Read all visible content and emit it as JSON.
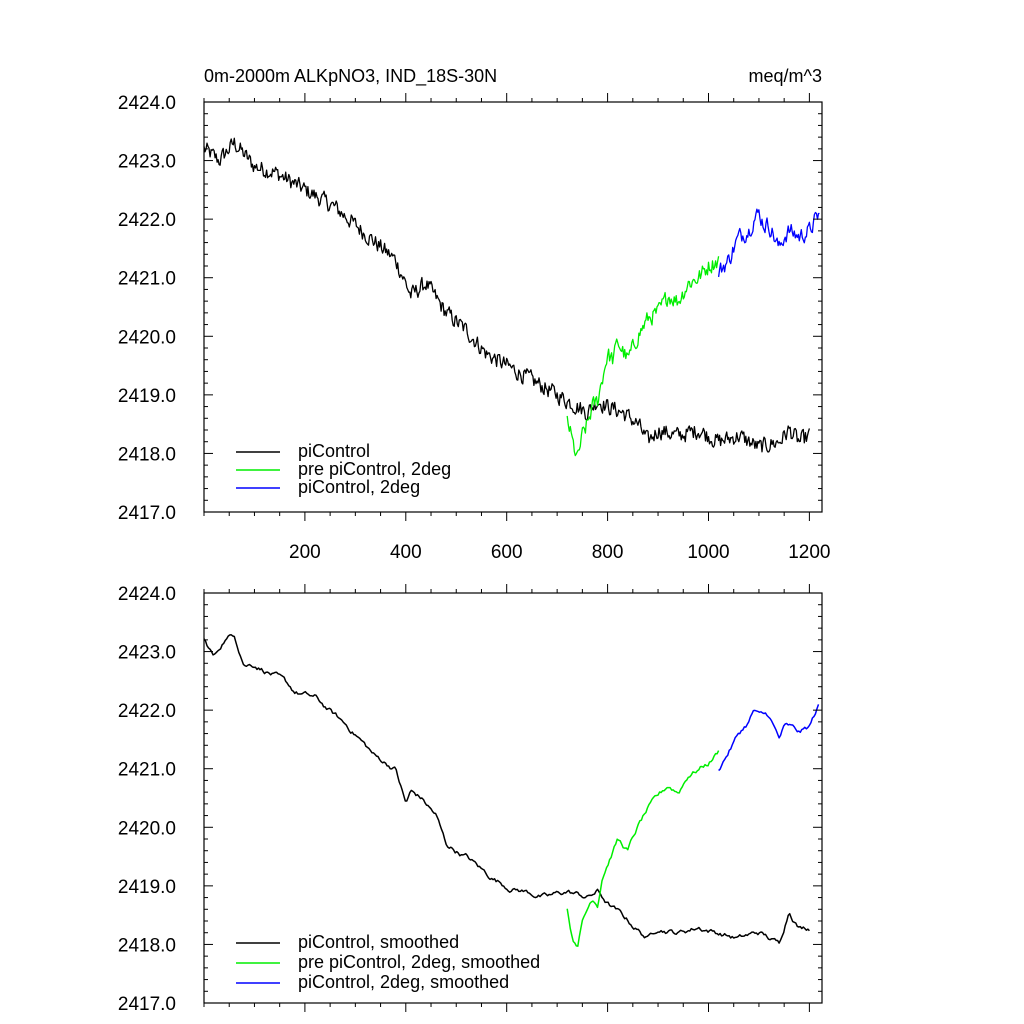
{
  "chart_data": [
    {
      "type": "line",
      "title": "0m-2000m ALKpNO3, IND_18S-30N",
      "units": "meq/m^3",
      "xlim": [
        0,
        1225
      ],
      "ylim": [
        2417.0,
        2424.0
      ],
      "x_ticks": [
        200,
        400,
        600,
        800,
        1000,
        1200
      ],
      "x_tick_labels": [
        "200",
        "400",
        "600",
        "800",
        "1000",
        "1200"
      ],
      "y_ticks": [
        2417,
        2418,
        2419,
        2420,
        2421,
        2422,
        2423,
        2424
      ],
      "y_tick_labels": [
        "2417.0",
        "2418.0",
        "2419.0",
        "2420.0",
        "2421.0",
        "2422.0",
        "2423.0",
        "2424.0"
      ],
      "legend_position": "bottom-left",
      "series": [
        {
          "name": "piControl",
          "color": "#000000",
          "x": [
            0,
            30,
            60,
            100,
            140,
            180,
            220,
            260,
            300,
            340,
            380,
            410,
            440,
            480,
            520,
            560,
            600,
            640,
            680,
            720,
            740,
            760,
            780,
            800,
            830,
            860,
            880,
            900,
            940,
            980,
            1020,
            1060,
            1100,
            1140,
            1160,
            1180,
            1200
          ],
          "y": [
            2423.2,
            2423.0,
            2423.3,
            2422.9,
            2422.8,
            2422.6,
            2422.4,
            2422.2,
            2421.9,
            2421.6,
            2421.3,
            2420.7,
            2420.9,
            2420.4,
            2420.1,
            2419.7,
            2419.5,
            2419.3,
            2419.1,
            2418.9,
            2418.8,
            2418.7,
            2418.9,
            2418.8,
            2418.7,
            2418.5,
            2418.2,
            2418.4,
            2418.3,
            2418.4,
            2418.2,
            2418.3,
            2418.1,
            2418.2,
            2418.4,
            2418.2,
            2418.3
          ]
        },
        {
          "name": "pre piControl, 2deg",
          "color": "#00ee00",
          "x": [
            720,
            730,
            740,
            750,
            760,
            770,
            780,
            790,
            800,
            810,
            820,
            840,
            860,
            880,
            900,
            920,
            940,
            960,
            980,
            1000,
            1020
          ],
          "y": [
            2418.6,
            2418.2,
            2417.9,
            2418.3,
            2418.5,
            2418.8,
            2418.9,
            2419.3,
            2419.7,
            2419.6,
            2419.9,
            2419.6,
            2420.0,
            2420.3,
            2420.4,
            2420.7,
            2420.6,
            2420.9,
            2421.0,
            2421.2,
            2421.3
          ]
        },
        {
          "name": "piControl, 2deg",
          "color": "#0000ff",
          "x": [
            1020,
            1040,
            1060,
            1080,
            1090,
            1100,
            1110,
            1120,
            1140,
            1150,
            1160,
            1180,
            1200,
            1220
          ],
          "y": [
            2421.1,
            2421.3,
            2421.7,
            2421.8,
            2422.0,
            2422.1,
            2421.9,
            2421.9,
            2421.5,
            2421.7,
            2421.8,
            2421.7,
            2421.8,
            2422.1
          ]
        }
      ]
    },
    {
      "type": "line",
      "xlim": [
        0,
        1225
      ],
      "ylim": [
        2417.0,
        2424.0
      ],
      "x_ticks": [
        200,
        400,
        600,
        800,
        1000,
        1200
      ],
      "y_ticks": [
        2417,
        2418,
        2419,
        2420,
        2421,
        2422,
        2423,
        2424
      ],
      "y_tick_labels": [
        "2417.0",
        "2418.0",
        "2419.0",
        "2420.0",
        "2421.0",
        "2422.0",
        "2423.0",
        "2424.0"
      ],
      "legend_position": "bottom-left",
      "series": [
        {
          "name": "piControl, smoothed",
          "color": "#000000",
          "x": [
            0,
            20,
            40,
            60,
            80,
            100,
            140,
            180,
            220,
            260,
            300,
            340,
            380,
            400,
            410,
            430,
            460,
            480,
            520,
            560,
            600,
            640,
            680,
            720,
            760,
            780,
            800,
            840,
            880,
            900,
            940,
            980,
            1020,
            1060,
            1100,
            1140,
            1160,
            1180,
            1200
          ],
          "y": [
            2423.2,
            2422.9,
            2423.2,
            2423.3,
            2422.8,
            2422.8,
            2422.6,
            2422.3,
            2422.2,
            2421.9,
            2421.6,
            2421.2,
            2421.0,
            2420.4,
            2420.6,
            2420.5,
            2420.2,
            2419.7,
            2419.5,
            2419.2,
            2419.0,
            2418.9,
            2418.8,
            2418.9,
            2418.8,
            2418.9,
            2418.7,
            2418.4,
            2418.1,
            2418.3,
            2418.2,
            2418.3,
            2418.2,
            2418.1,
            2418.2,
            2418.0,
            2418.6,
            2418.3,
            2418.3
          ]
        },
        {
          "name": "pre piControl, 2deg, smoothed",
          "color": "#00ee00",
          "x": [
            720,
            730,
            740,
            750,
            760,
            770,
            780,
            790,
            800,
            810,
            820,
            840,
            860,
            880,
            900,
            920,
            940,
            960,
            980,
            1000,
            1020
          ],
          "y": [
            2418.6,
            2418.1,
            2418.0,
            2418.4,
            2418.6,
            2418.8,
            2418.7,
            2419.2,
            2419.4,
            2419.6,
            2419.8,
            2419.6,
            2420.0,
            2420.3,
            2420.5,
            2420.7,
            2420.6,
            2420.9,
            2421.0,
            2421.1,
            2421.3
          ]
        },
        {
          "name": "piControl, 2deg, smoothed",
          "color": "#0000ff",
          "x": [
            1020,
            1040,
            1060,
            1080,
            1090,
            1100,
            1120,
            1140,
            1150,
            1160,
            1180,
            1200,
            1220
          ],
          "y": [
            2421.0,
            2421.3,
            2421.6,
            2421.8,
            2422.0,
            2421.9,
            2421.9,
            2421.5,
            2421.7,
            2421.7,
            2421.6,
            2421.7,
            2422.1
          ]
        }
      ]
    }
  ]
}
